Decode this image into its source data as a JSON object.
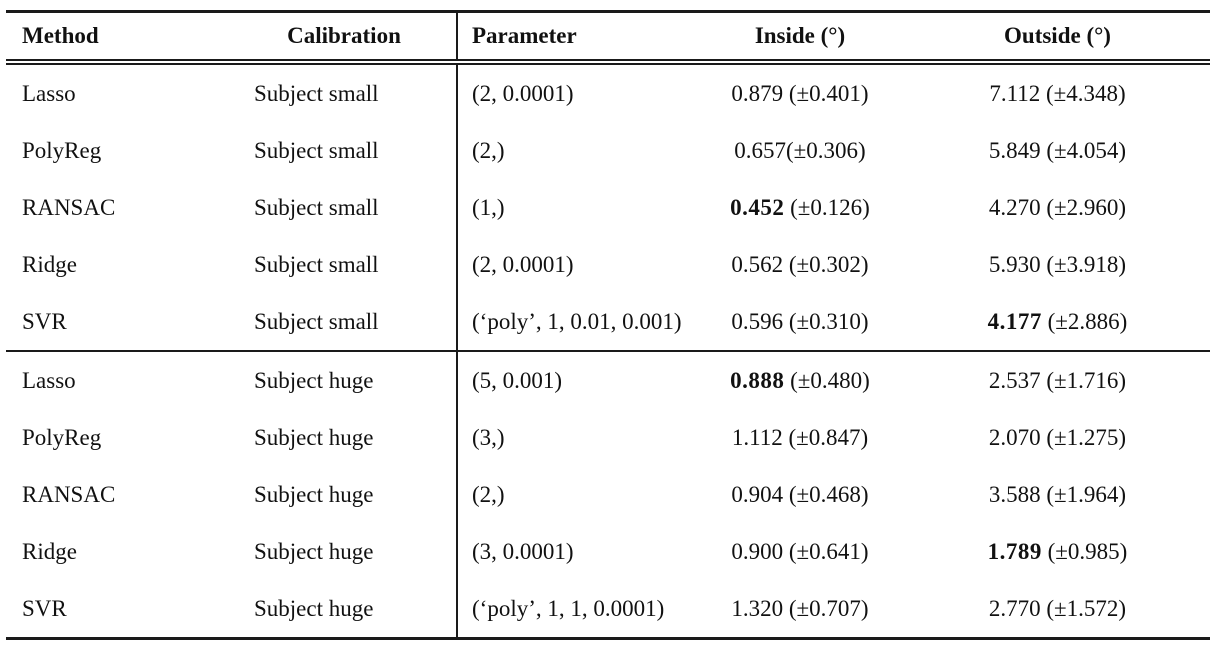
{
  "table": {
    "name": "regression-method-calibration-results",
    "border_color": "#1a1a1a",
    "text_color": "#111111",
    "background_color": "#ffffff",
    "columns": [
      {
        "label": "Method"
      },
      {
        "label": "Calibration"
      },
      {
        "label": "Parameter"
      },
      {
        "label": "Inside (°)"
      },
      {
        "label": "Outside (°)"
      }
    ],
    "groups": [
      {
        "rows": [
          {
            "method": "Lasso",
            "calibration": "Subject small",
            "parameter": "(2, 0.0001)",
            "inside": {
              "mean": "0.879",
              "rest": " (±0.401)",
              "bold": false
            },
            "outside": {
              "mean": "7.112",
              "rest": " (±4.348)",
              "bold": false
            }
          },
          {
            "method": "PolyReg",
            "calibration": "Subject small",
            "parameter": "(2,)",
            "inside": {
              "mean": "0.657",
              "rest": "(±0.306)",
              "bold": false
            },
            "outside": {
              "mean": "5.849",
              "rest": " (±4.054)",
              "bold": false
            }
          },
          {
            "method": "RANSAC",
            "calibration": "Subject small",
            "parameter": "(1,)",
            "inside": {
              "mean": "0.452",
              "rest": " (±0.126)",
              "bold": true
            },
            "outside": {
              "mean": "4.270",
              "rest": " (±2.960)",
              "bold": false
            }
          },
          {
            "method": "Ridge",
            "calibration": "Subject small",
            "parameter": "(2, 0.0001)",
            "inside": {
              "mean": "0.562",
              "rest": " (±0.302)",
              "bold": false
            },
            "outside": {
              "mean": "5.930",
              "rest": " (±3.918)",
              "bold": false
            }
          },
          {
            "method": "SVR",
            "calibration": "Subject small",
            "parameter": "(‘poly’, 1, 0.01, 0.001)",
            "inside": {
              "mean": "0.596",
              "rest": " (±0.310)",
              "bold": false
            },
            "outside": {
              "mean": "4.177",
              "rest": " (±2.886)",
              "bold": true
            }
          }
        ]
      },
      {
        "rows": [
          {
            "method": "Lasso",
            "calibration": "Subject huge",
            "parameter": "(5, 0.001)",
            "inside": {
              "mean": "0.888",
              "rest": " (±0.480)",
              "bold": true
            },
            "outside": {
              "mean": "2.537",
              "rest": " (±1.716)",
              "bold": false
            }
          },
          {
            "method": "PolyReg",
            "calibration": "Subject huge",
            "parameter": "(3,)",
            "inside": {
              "mean": "1.112",
              "rest": " (±0.847)",
              "bold": false
            },
            "outside": {
              "mean": "2.070",
              "rest": " (±1.275)",
              "bold": false
            }
          },
          {
            "method": "RANSAC",
            "calibration": "Subject huge",
            "parameter": "(2,)",
            "inside": {
              "mean": "0.904",
              "rest": " (±0.468)",
              "bold": false
            },
            "outside": {
              "mean": "3.588",
              "rest": " (±1.964)",
              "bold": false
            }
          },
          {
            "method": "Ridge",
            "calibration": "Subject huge",
            "parameter": "(3, 0.0001)",
            "inside": {
              "mean": "0.900",
              "rest": " (±0.641)",
              "bold": false
            },
            "outside": {
              "mean": "1.789",
              "rest": " (±0.985)",
              "bold": true
            }
          },
          {
            "method": "SVR",
            "calibration": "Subject huge",
            "parameter": "(‘poly’, 1, 1, 0.0001)",
            "inside": {
              "mean": "1.320",
              "rest": " (±0.707)",
              "bold": false
            },
            "outside": {
              "mean": "2.770",
              "rest": " (±1.572)",
              "bold": false
            }
          }
        ]
      }
    ]
  }
}
